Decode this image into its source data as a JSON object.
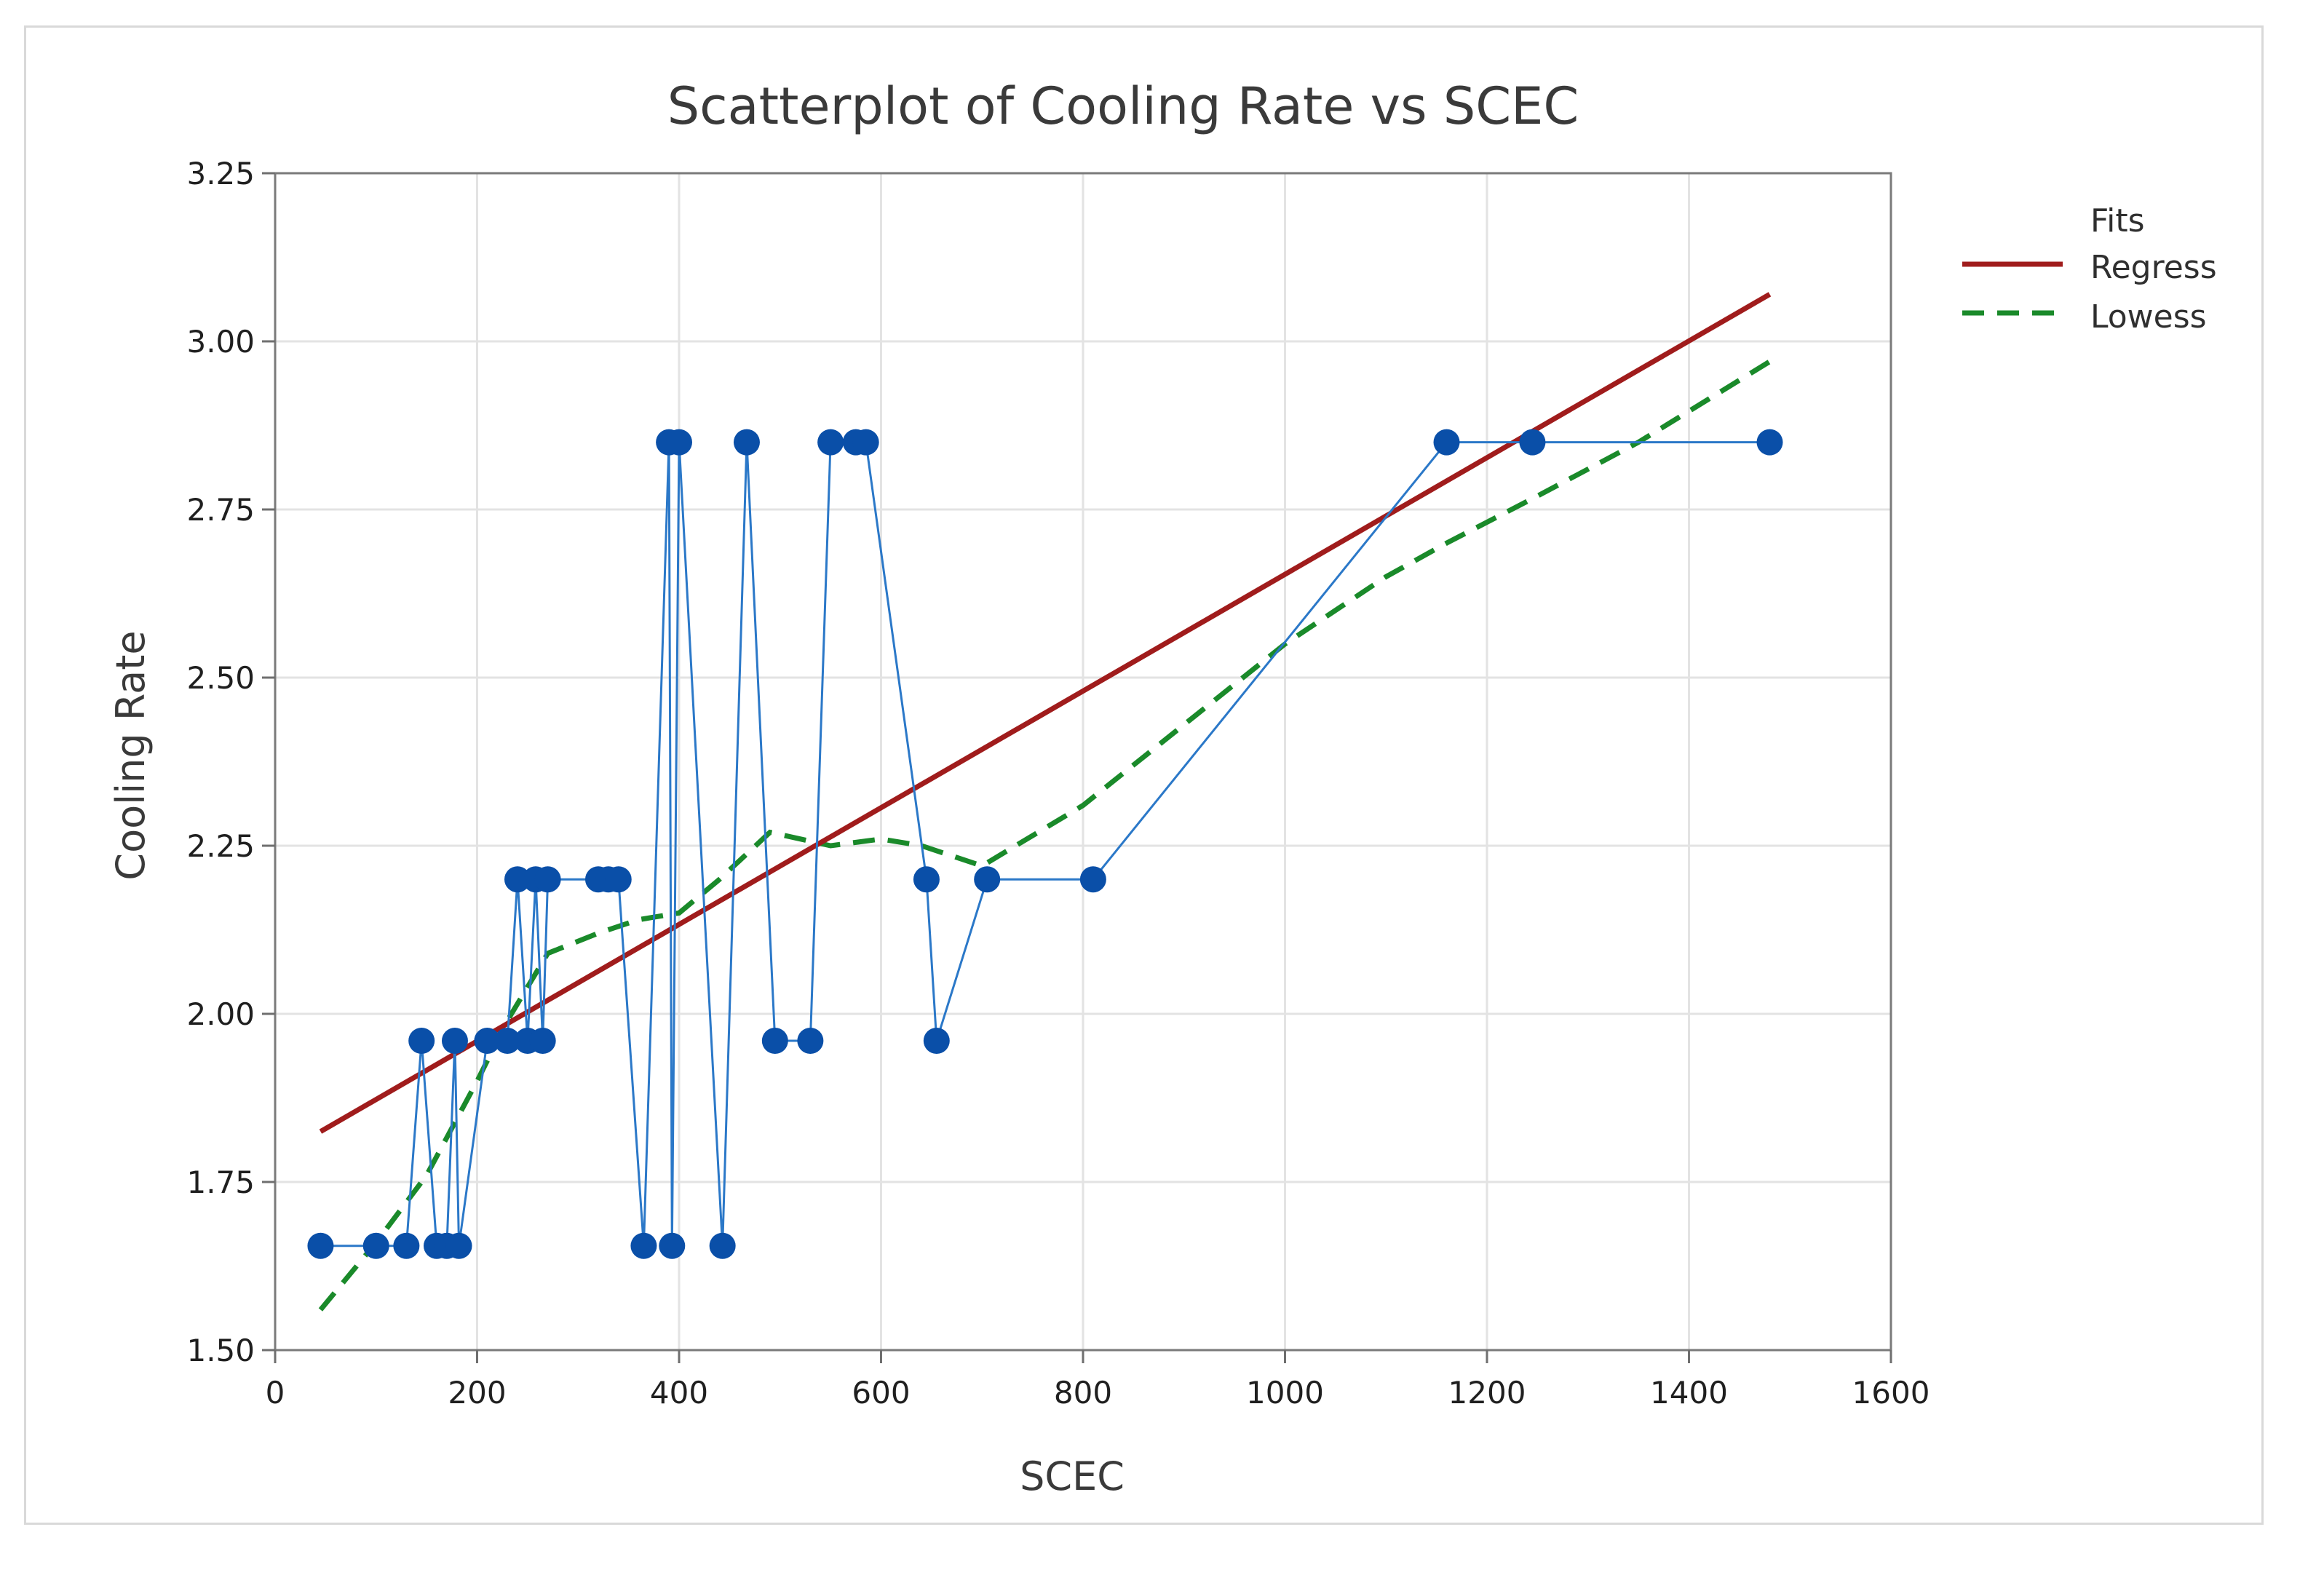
{
  "chart_data": {
    "type": "scatter",
    "title": "Scatterplot of Cooling Rate vs SCEC",
    "xlabel": "SCEC",
    "ylabel": "Cooling Rate",
    "xlim": [
      0,
      1600
    ],
    "ylim": [
      1.5,
      3.25
    ],
    "xticks": [
      0,
      200,
      400,
      600,
      800,
      1000,
      1200,
      1400,
      1600
    ],
    "xtick_labels": [
      "0",
      "200",
      "400",
      "600",
      "800",
      "1000",
      "1200",
      "1400",
      "1600"
    ],
    "yticks": [
      1.5,
      1.75,
      2.0,
      2.25,
      2.5,
      2.75,
      3.0,
      3.25
    ],
    "ytick_labels": [
      "1.50",
      "1.75",
      "2.00",
      "2.25",
      "2.50",
      "2.75",
      "3.00",
      "3.25"
    ],
    "grid": true,
    "legend": {
      "title": "Fits",
      "placement": "right",
      "entries": [
        {
          "label": "Regress",
          "style": "solid",
          "color": "#a01c1c"
        },
        {
          "label": "Lowess",
          "style": "dashed",
          "color": "#1a8a2a"
        }
      ]
    },
    "colors": {
      "points": "#0a4fa8",
      "connect_line": "#2b78c8",
      "regress": "#a01c1c",
      "lowess": "#1a8a2a",
      "grid": "#e3e3e3"
    },
    "series": [
      {
        "name": "Cooling Rate",
        "kind": "points-connected",
        "x": [
          45,
          100,
          130,
          145,
          160,
          170,
          178,
          182,
          210,
          230,
          240,
          250,
          258,
          265,
          270,
          320,
          330,
          340,
          365,
          390,
          393,
          400,
          443,
          467,
          495,
          530,
          550,
          575,
          585,
          645,
          655,
          705,
          810,
          1160,
          1245,
          1480
        ],
        "y": [
          1.655,
          1.655,
          1.655,
          1.96,
          1.655,
          1.655,
          1.96,
          1.655,
          1.96,
          1.96,
          2.2,
          1.96,
          2.2,
          1.96,
          2.2,
          2.2,
          2.2,
          2.2,
          1.655,
          2.85,
          1.655,
          2.85,
          1.655,
          2.85,
          1.96,
          1.96,
          2.85,
          2.85,
          2.85,
          2.2,
          1.96,
          2.2,
          2.2,
          2.85,
          2.85,
          2.85
        ]
      },
      {
        "name": "Regress",
        "kind": "line",
        "x": [
          45,
          1480
        ],
        "y": [
          1.825,
          3.07
        ]
      },
      {
        "name": "Lowess",
        "kind": "line-dashed",
        "x": [
          45,
          100,
          150,
          200,
          230,
          270,
          320,
          360,
          400,
          440,
          490,
          550,
          600,
          640,
          700,
          800,
          900,
          1000,
          1100,
          1160,
          1250,
          1350,
          1480
        ],
        "y": [
          1.56,
          1.66,
          1.76,
          1.9,
          1.99,
          2.09,
          2.12,
          2.14,
          2.15,
          2.2,
          2.27,
          2.25,
          2.26,
          2.25,
          2.22,
          2.31,
          2.43,
          2.55,
          2.65,
          2.7,
          2.77,
          2.85,
          2.97
        ]
      }
    ]
  }
}
